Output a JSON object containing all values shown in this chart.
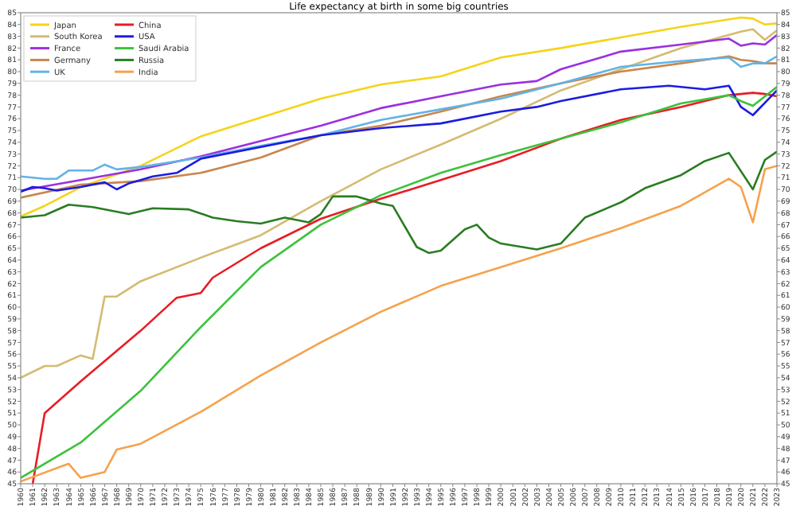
{
  "chart_data": {
    "type": "line",
    "title": "Life expectancy at birth in some big countries",
    "xlim": [
      1960,
      2023
    ],
    "xticks": [
      1960,
      1961,
      1962,
      1963,
      1964,
      1965,
      1966,
      1967,
      1968,
      1969,
      1970,
      1971,
      1972,
      1973,
      1974,
      1975,
      1976,
      1977,
      1978,
      1979,
      1980,
      1981,
      1982,
      1983,
      1984,
      1985,
      1986,
      1987,
      1988,
      1989,
      1990,
      1991,
      1992,
      1993,
      1994,
      1995,
      1996,
      1997,
      1998,
      1999,
      2000,
      2001,
      2002,
      2003,
      2004,
      2005,
      2006,
      2007,
      2008,
      2009,
      2010,
      2011,
      2012,
      2013,
      2014,
      2015,
      2016,
      2017,
      2018,
      2019,
      2020,
      2021,
      2022,
      2023
    ],
    "ylim": [
      45,
      85
    ],
    "yticks": [
      45,
      46,
      47,
      48,
      49,
      50,
      51,
      52,
      53,
      54,
      55,
      56,
      57,
      58,
      59,
      60,
      61,
      62,
      63,
      64,
      65,
      66,
      67,
      68,
      69,
      70,
      71,
      72,
      73,
      74,
      75,
      76,
      77,
      78,
      79,
      80,
      81,
      82,
      83,
      84,
      85
    ],
    "y2lim": [
      45,
      85
    ],
    "y2ticks": [
      45,
      46,
      47,
      48,
      49,
      50,
      51,
      52,
      53,
      54,
      55,
      56,
      57,
      58,
      59,
      60,
      61,
      62,
      63,
      64,
      65,
      66,
      67,
      68,
      69,
      70,
      71,
      72,
      73,
      74,
      75,
      76,
      77,
      78,
      79,
      80,
      81,
      82,
      83,
      84,
      85
    ],
    "legend": "top left",
    "grid": false,
    "marker": "none",
    "line_style": "solid",
    "series": [
      {
        "name": "Japan",
        "color": "#f5d31b",
        "x": [
          1960,
          1962,
          1965,
          1970,
          1975,
          1980,
          1985,
          1990,
          1995,
          2000,
          2005,
          2010,
          2015,
          2020,
          2021,
          2022,
          2023
        ],
        "values": [
          67.7,
          68.6,
          70.2,
          72.0,
          74.5,
          76.1,
          77.7,
          78.9,
          79.6,
          81.2,
          82.0,
          82.9,
          83.8,
          84.6,
          84.5,
          84.0,
          84.1
        ]
      },
      {
        "name": "South Korea",
        "color": "#d4bb72",
        "x": [
          1960,
          1962,
          1963,
          1965,
          1966,
          1967,
          1968,
          1970,
          1975,
          1980,
          1985,
          1990,
          1995,
          2000,
          2005,
          2010,
          2015,
          2020,
          2021,
          2022,
          2023
        ],
        "values": [
          54.0,
          55.0,
          55.0,
          55.9,
          55.6,
          60.9,
          60.9,
          62.2,
          64.2,
          66.1,
          69.0,
          71.7,
          73.8,
          76.0,
          78.4,
          80.2,
          82.0,
          83.4,
          83.6,
          82.7,
          83.5
        ]
      },
      {
        "name": "France",
        "color": "#9b30e0",
        "x": [
          1960,
          1965,
          1970,
          1975,
          1980,
          1985,
          1990,
          1995,
          2000,
          2003,
          2005,
          2010,
          2015,
          2019,
          2020,
          2021,
          2022,
          2023
        ],
        "values": [
          69.9,
          70.8,
          71.7,
          72.8,
          74.1,
          75.4,
          76.9,
          77.9,
          78.9,
          79.2,
          80.2,
          81.7,
          82.3,
          82.8,
          82.2,
          82.4,
          82.3,
          83.1
        ]
      },
      {
        "name": "Germany",
        "color": "#c8864e",
        "x": [
          1960,
          1965,
          1970,
          1975,
          1980,
          1985,
          1990,
          1995,
          2000,
          2005,
          2010,
          2015,
          2019,
          2020,
          2021,
          2022,
          2023
        ],
        "values": [
          69.3,
          70.4,
          70.7,
          71.4,
          72.7,
          74.6,
          75.4,
          76.6,
          77.9,
          79.0,
          80.0,
          80.7,
          81.3,
          81.0,
          80.9,
          80.7,
          80.7
        ]
      },
      {
        "name": "UK",
        "color": "#62b3e6",
        "x": [
          1960,
          1962,
          1963,
          1964,
          1966,
          1967,
          1968,
          1970,
          1975,
          1980,
          1985,
          1990,
          1995,
          2000,
          2005,
          2010,
          2015,
          2019,
          2020,
          2021,
          2022,
          2023
        ],
        "values": [
          71.1,
          70.9,
          70.9,
          71.6,
          71.6,
          72.1,
          71.7,
          71.9,
          72.7,
          73.7,
          74.6,
          75.9,
          76.8,
          77.7,
          79.0,
          80.4,
          80.9,
          81.2,
          80.4,
          80.7,
          80.7,
          81.3
        ]
      },
      {
        "name": "China",
        "color": "#e81c24",
        "x": [
          1961,
          1962,
          1965,
          1970,
          1973,
          1975,
          1976,
          1980,
          1985,
          1990,
          1995,
          2000,
          2005,
          2010,
          2015,
          2019,
          2021,
          2022,
          2023
        ],
        "values": [
          45.0,
          51.0,
          53.7,
          58.0,
          60.8,
          61.2,
          62.5,
          65.0,
          67.5,
          69.2,
          70.8,
          72.4,
          74.3,
          75.9,
          77.0,
          78.0,
          78.2,
          78.1,
          77.9
        ]
      },
      {
        "name": "USA",
        "color": "#1c1ce0",
        "x": [
          1960,
          1961,
          1962,
          1963,
          1965,
          1967,
          1968,
          1969,
          1970,
          1971,
          1973,
          1975,
          1980,
          1985,
          1990,
          1995,
          2000,
          2003,
          2005,
          2010,
          2014,
          2017,
          2019,
          2020,
          2021,
          2023
        ],
        "values": [
          69.8,
          70.2,
          70.1,
          69.9,
          70.2,
          70.6,
          70.0,
          70.5,
          70.8,
          71.1,
          71.4,
          72.6,
          73.6,
          74.6,
          75.2,
          75.6,
          76.6,
          77.0,
          77.5,
          78.5,
          78.8,
          78.5,
          78.8,
          77.0,
          76.3,
          78.4
        ]
      },
      {
        "name": "Saudi Arabia",
        "color": "#3cc23c",
        "x": [
          1960,
          1965,
          1970,
          1975,
          1980,
          1985,
          1990,
          1995,
          2000,
          2005,
          2010,
          2015,
          2019,
          2020,
          2021,
          2023
        ],
        "values": [
          45.5,
          48.5,
          52.9,
          58.3,
          63.4,
          67.0,
          69.5,
          71.4,
          72.9,
          74.3,
          75.7,
          77.3,
          78.0,
          77.5,
          77.1,
          78.7
        ]
      },
      {
        "name": "Russia",
        "color": "#2a7d22",
        "x": [
          1960,
          1962,
          1964,
          1966,
          1969,
          1971,
          1974,
          1976,
          1978,
          1980,
          1982,
          1984,
          1985,
          1986,
          1988,
          1990,
          1991,
          1993,
          1994,
          1995,
          1997,
          1998,
          1999,
          2000,
          2003,
          2005,
          2007,
          2010,
          2012,
          2015,
          2017,
          2019,
          2021,
          2022,
          2023
        ],
        "values": [
          67.6,
          67.8,
          68.7,
          68.5,
          67.9,
          68.4,
          68.3,
          67.6,
          67.3,
          67.1,
          67.6,
          67.2,
          67.9,
          69.4,
          69.4,
          68.8,
          68.6,
          65.1,
          64.6,
          64.8,
          66.6,
          67.0,
          65.9,
          65.4,
          64.9,
          65.4,
          67.6,
          68.9,
          70.1,
          71.2,
          72.4,
          73.1,
          70.0,
          72.5,
          73.2
        ]
      },
      {
        "name": "India",
        "color": "#f5a24c",
        "x": [
          1960,
          1964,
          1965,
          1967,
          1968,
          1970,
          1975,
          1980,
          1985,
          1990,
          1995,
          2000,
          2005,
          2010,
          2015,
          2019,
          2020,
          2021,
          2022,
          2023
        ],
        "values": [
          45.2,
          46.7,
          45.5,
          46.0,
          47.9,
          48.4,
          51.1,
          54.2,
          57.0,
          59.6,
          61.8,
          63.4,
          65.0,
          66.7,
          68.6,
          70.9,
          70.2,
          67.2,
          71.7,
          72.0
        ]
      }
    ]
  }
}
